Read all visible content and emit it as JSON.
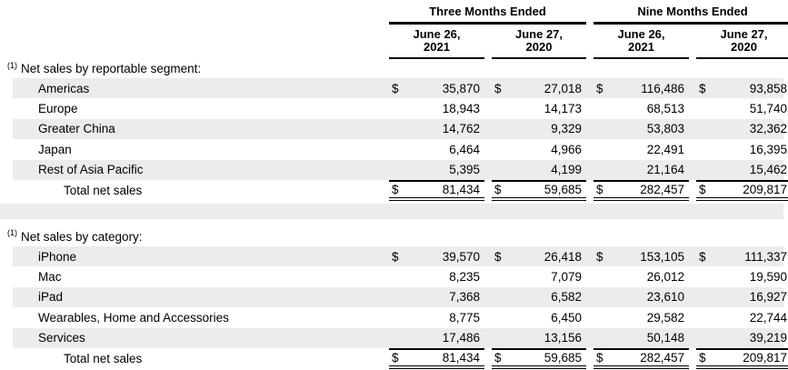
{
  "table": {
    "period_groups": [
      {
        "label": "Three Months Ended"
      },
      {
        "label": "Nine Months Ended"
      }
    ],
    "date_columns": [
      {
        "line1": "June 26,",
        "line2": "2021"
      },
      {
        "line1": "June 27,",
        "line2": "2020"
      },
      {
        "line1": "June 26,",
        "line2": "2021"
      },
      {
        "line1": "June 27,",
        "line2": "2020"
      }
    ],
    "sections": [
      {
        "marker": "(1)",
        "title": "Net sales by reportable segment:",
        "rows": [
          {
            "label": "Americas",
            "dollar": "$",
            "values": [
              "35,870",
              "27,018",
              "116,486",
              "93,858"
            ]
          },
          {
            "label": "Europe",
            "dollar": "",
            "values": [
              "18,943",
              "14,173",
              "68,513",
              "51,740"
            ]
          },
          {
            "label": "Greater China",
            "dollar": "",
            "values": [
              "14,762",
              "9,329",
              "53,803",
              "32,362"
            ]
          },
          {
            "label": "Japan",
            "dollar": "",
            "values": [
              "6,464",
              "4,966",
              "22,491",
              "16,395"
            ]
          },
          {
            "label": "Rest of Asia Pacific",
            "dollar": "",
            "values": [
              "5,395",
              "4,199",
              "21,164",
              "15,462"
            ]
          }
        ],
        "total": {
          "label": "Total net sales",
          "dollar": "$",
          "values": [
            "81,434",
            "59,685",
            "282,457",
            "209,817"
          ]
        }
      },
      {
        "marker": "(1)",
        "title": "Net sales by category:",
        "rows": [
          {
            "label": "iPhone",
            "dollar": "$",
            "values": [
              "39,570",
              "26,418",
              "153,105",
              "111,337"
            ]
          },
          {
            "label": "Mac",
            "dollar": "",
            "values": [
              "8,235",
              "7,079",
              "26,012",
              "19,590"
            ]
          },
          {
            "label": "iPad",
            "dollar": "",
            "values": [
              "7,368",
              "6,582",
              "23,610",
              "16,927"
            ]
          },
          {
            "label": "Wearables, Home and Accessories",
            "dollar": "",
            "values": [
              "8,775",
              "6,450",
              "29,582",
              "22,744"
            ]
          },
          {
            "label": "Services",
            "dollar": "",
            "values": [
              "17,486",
              "13,156",
              "50,148",
              "39,219"
            ]
          }
        ],
        "total": {
          "label": "Total net sales",
          "dollar": "$",
          "values": [
            "81,434",
            "59,685",
            "282,457",
            "209,817"
          ]
        }
      }
    ],
    "colors": {
      "stripe": "#ececec",
      "line": "#000000"
    }
  }
}
